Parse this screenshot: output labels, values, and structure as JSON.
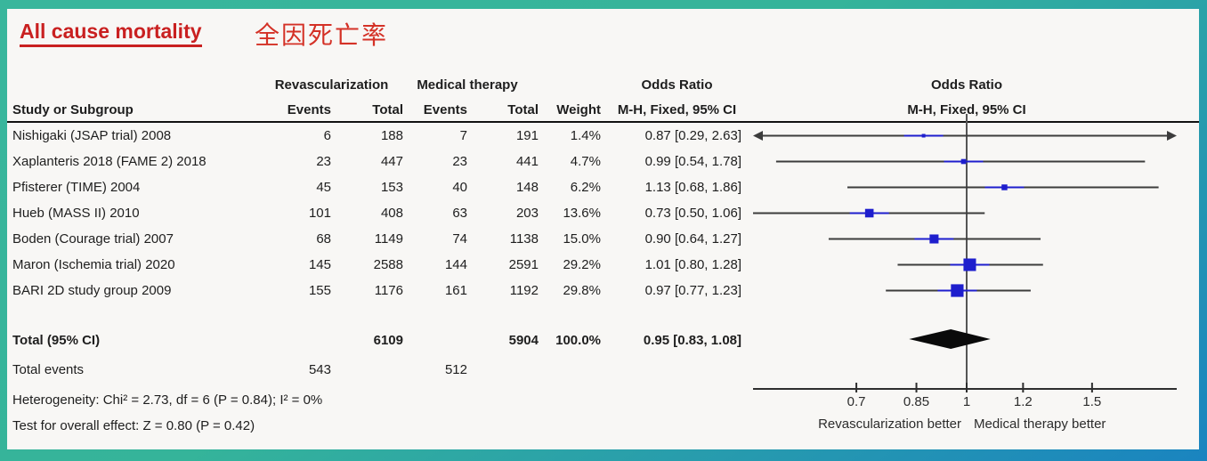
{
  "title": {
    "english": "All cause mortality",
    "chinese": "全因死亡率"
  },
  "table": {
    "group1": "Revascularization",
    "group2": "Medical therapy",
    "col_study": "Study or Subgroup",
    "col_events1": "Events",
    "col_total1": "Total",
    "col_events2": "Events",
    "col_total2": "Total",
    "col_weight": "Weight",
    "or_header1": "Odds Ratio",
    "or_header2": "M-H, Fixed, 95% CI",
    "plot_header1": "Odds Ratio",
    "plot_header2": "M-H, Fixed, 95% CI"
  },
  "chart_data": {
    "type": "forest",
    "effect_measure": "Odds Ratio, M-H, Fixed, 95% CI",
    "x_scale": "log",
    "axis_ticks": [
      0.7,
      0.85,
      1,
      1.2,
      1.5
    ],
    "x_range_displayed": [
      0.5,
      1.97
    ],
    "studies": [
      {
        "name": "Nishigaki (JSAP trial) 2008",
        "events_rev": "6",
        "total_rev": "188",
        "events_med": "7",
        "total_med": "191",
        "weight": "1.4%",
        "or_ci": "0.87 [0.29, 2.63]",
        "or": 0.87,
        "lo": 0.29,
        "hi": 2.63,
        "weight_pct": 1.4
      },
      {
        "name": "Xaplanteris 2018 (FAME 2) 2018",
        "events_rev": "23",
        "total_rev": "447",
        "events_med": "23",
        "total_med": "441",
        "weight": "4.7%",
        "or_ci": "0.99 [0.54, 1.78]",
        "or": 0.99,
        "lo": 0.54,
        "hi": 1.78,
        "weight_pct": 4.7
      },
      {
        "name": "Pfisterer (TIME) 2004",
        "events_rev": "45",
        "total_rev": "153",
        "events_med": "40",
        "total_med": "148",
        "weight": "6.2%",
        "or_ci": "1.13 [0.68, 1.86]",
        "or": 1.13,
        "lo": 0.68,
        "hi": 1.86,
        "weight_pct": 6.2
      },
      {
        "name": "Hueb (MASS II) 2010",
        "events_rev": "101",
        "total_rev": "408",
        "events_med": "63",
        "total_med": "203",
        "weight": "13.6%",
        "or_ci": "0.73 [0.50, 1.06]",
        "or": 0.73,
        "lo": 0.5,
        "hi": 1.06,
        "weight_pct": 13.6
      },
      {
        "name": "Boden (Courage trial) 2007",
        "events_rev": "68",
        "total_rev": "1149",
        "events_med": "74",
        "total_med": "1138",
        "weight": "15.0%",
        "or_ci": "0.90 [0.64, 1.27]",
        "or": 0.9,
        "lo": 0.64,
        "hi": 1.27,
        "weight_pct": 15.0
      },
      {
        "name": "Maron (Ischemia trial) 2020",
        "events_rev": "145",
        "total_rev": "2588",
        "events_med": "144",
        "total_med": "2591",
        "weight": "29.2%",
        "or_ci": "1.01 [0.80, 1.28]",
        "or": 1.01,
        "lo": 0.8,
        "hi": 1.28,
        "weight_pct": 29.2
      },
      {
        "name": "BARI 2D study group 2009",
        "events_rev": "155",
        "total_rev": "1176",
        "events_med": "161",
        "total_med": "1192",
        "weight": "29.8%",
        "or_ci": "0.97 [0.77, 1.23]",
        "or": 0.97,
        "lo": 0.77,
        "hi": 1.23,
        "weight_pct": 29.8
      }
    ],
    "total": {
      "label": "Total (95% CI)",
      "total_rev": "6109",
      "total_med": "5904",
      "weight": "100.0%",
      "or_ci": "0.95 [0.83, 1.08]",
      "or": 0.95,
      "lo": 0.83,
      "hi": 1.08,
      "events_label": "Total events",
      "events_rev": "543",
      "events_med": "512"
    },
    "heterogeneity": "Heterogeneity: Chi² = 2.73, df = 6 (P = 0.84); I² = 0%",
    "overall_effect": "Test for overall effect: Z = 0.80 (P = 0.42)",
    "left_label": "Revascularization better",
    "right_label": "Medical therapy better"
  },
  "colors": {
    "frame_teal": "#35b49a",
    "frame_blue": "#1a84c0",
    "title_red": "#c92020",
    "marker_blue": "#1e1ecd",
    "line_gray": "#3c3c3c",
    "diamond_black": "#0a0a0a"
  }
}
